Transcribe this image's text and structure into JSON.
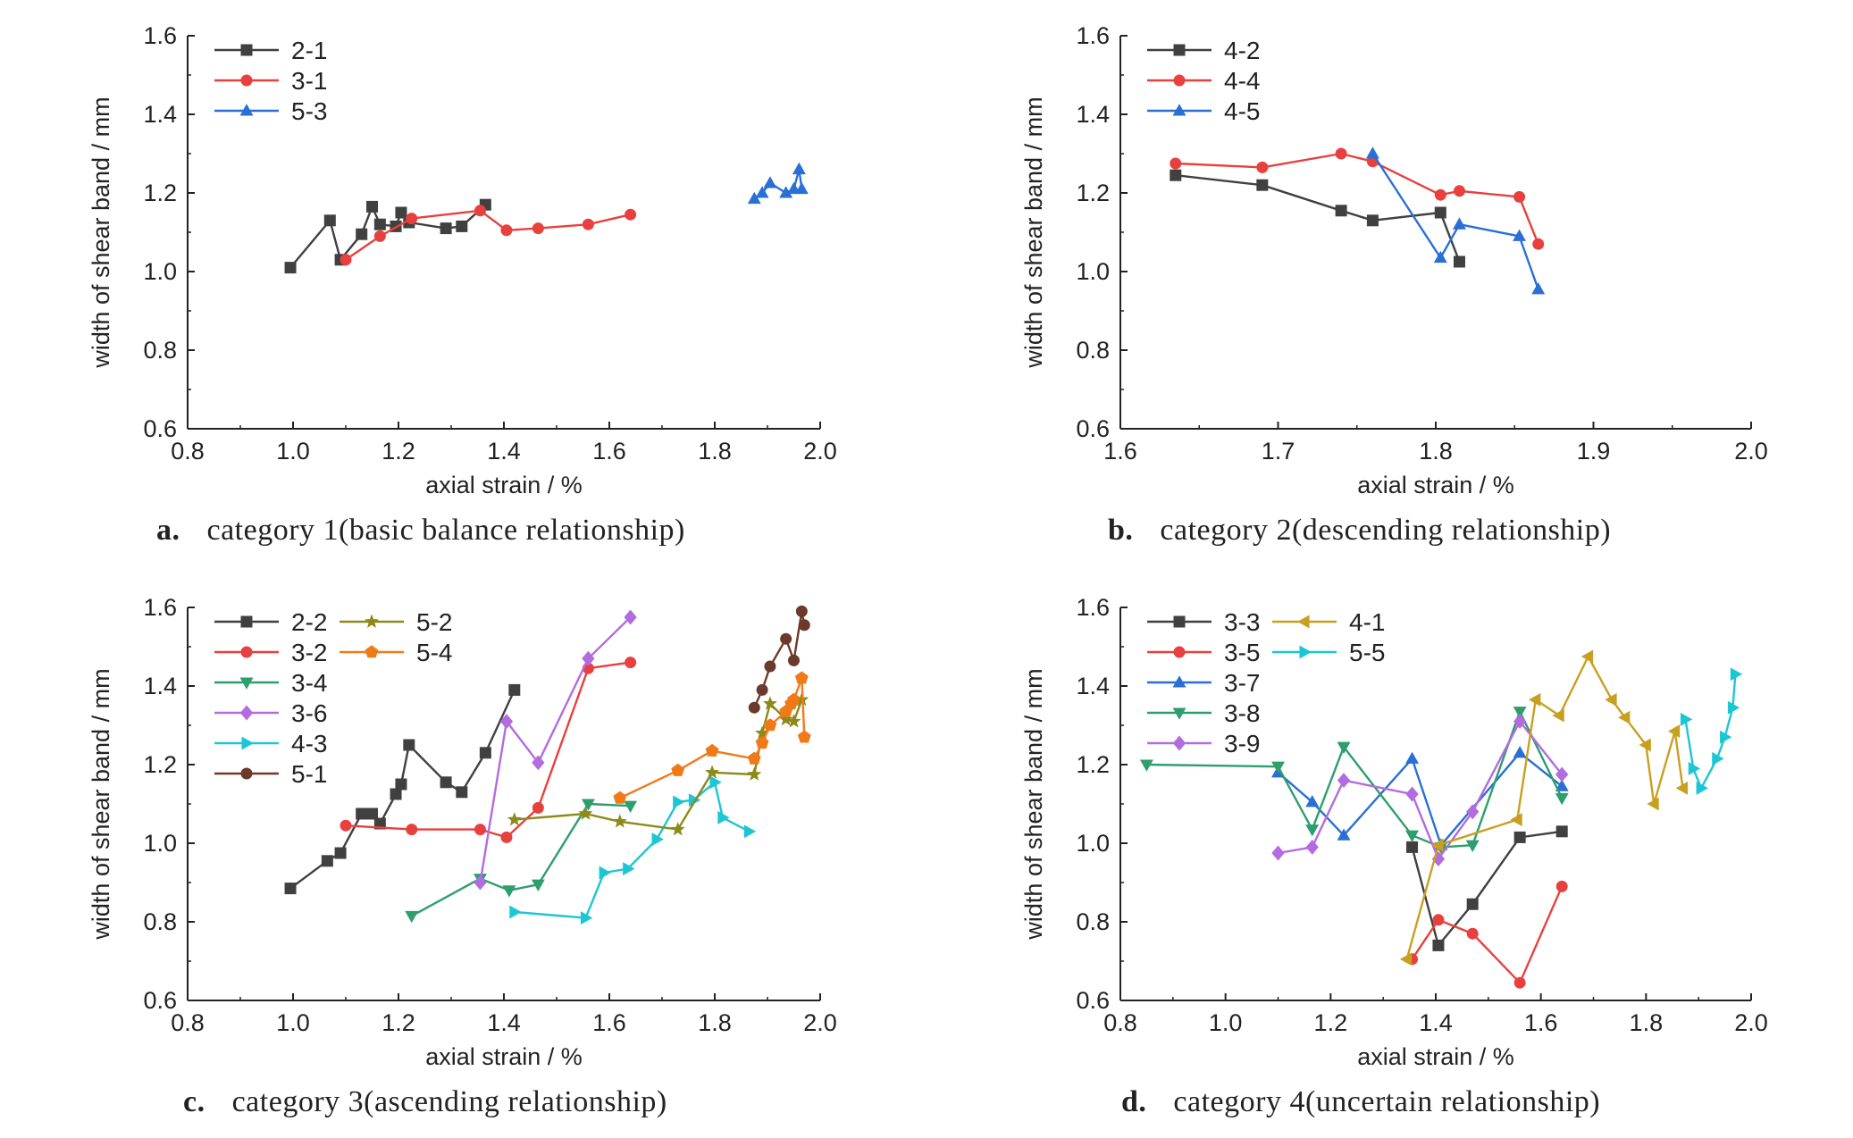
{
  "captions": [
    {
      "letter": "a.",
      "text": "category 1(basic balance relationship)"
    },
    {
      "letter": "b.",
      "text": "category 2(descending relationship)"
    },
    {
      "letter": "c.",
      "text": "category 3(ascending relationship)"
    },
    {
      "letter": "d.",
      "text": "category 4(uncertain relationship)"
    }
  ],
  "chart_data": [
    {
      "type": "line",
      "xlabel": "axial strain / %",
      "ylabel": "width of shear band / mm",
      "xlim": [
        0.8,
        2.0
      ],
      "ylim": [
        0.6,
        1.6
      ],
      "xticks": [
        0.8,
        1.0,
        1.2,
        1.4,
        1.6,
        1.8,
        2.0
      ],
      "yticks": [
        0.6,
        0.8,
        1.0,
        1.2,
        1.4,
        1.6
      ],
      "xtick_labels": [
        "0.8",
        "1.0",
        "1.2",
        "1.4",
        "1.6",
        "1.8",
        "2.0"
      ],
      "ytick_labels": [
        "0.6",
        "0.8",
        "1.0",
        "1.2",
        "1.4",
        "1.6"
      ],
      "legend_position": "top-left",
      "legend_columns": 1,
      "series": [
        {
          "name": "2-1",
          "color": "#404040",
          "marker": "square",
          "x": [
            0.995,
            1.07,
            1.09,
            1.13,
            1.15,
            1.165,
            1.195,
            1.205,
            1.22,
            1.29,
            1.32,
            1.365
          ],
          "y": [
            1.01,
            1.13,
            1.03,
            1.095,
            1.165,
            1.12,
            1.115,
            1.15,
            1.125,
            1.11,
            1.115,
            1.17
          ]
        },
        {
          "name": "3-1",
          "color": "#e8403e",
          "marker": "circle",
          "x": [
            1.1,
            1.165,
            1.225,
            1.355,
            1.405,
            1.465,
            1.56,
            1.64
          ],
          "y": [
            1.03,
            1.09,
            1.135,
            1.155,
            1.105,
            1.11,
            1.12,
            1.145
          ]
        },
        {
          "name": "5-3",
          "color": "#2a6fd6",
          "marker": "triangle-up",
          "x": [
            1.875,
            1.89,
            1.905,
            1.935,
            1.95,
            1.96,
            1.965
          ],
          "y": [
            1.185,
            1.2,
            1.225,
            1.2,
            1.21,
            1.26,
            1.21
          ]
        }
      ]
    },
    {
      "type": "line",
      "xlabel": "axial strain / %",
      "ylabel": "width of shear band / mm",
      "xlim": [
        1.6,
        2.0
      ],
      "ylim": [
        0.6,
        1.6
      ],
      "xticks": [
        1.6,
        1.7,
        1.8,
        1.9,
        2.0
      ],
      "yticks": [
        0.6,
        0.8,
        1.0,
        1.2,
        1.4,
        1.6
      ],
      "xtick_labels": [
        "1.6",
        "1.7",
        "1.8",
        "1.9",
        "2.0"
      ],
      "ytick_labels": [
        "0.6",
        "0.8",
        "1.0",
        "1.2",
        "1.4",
        "1.6"
      ],
      "legend_position": "top-left",
      "legend_columns": 1,
      "series": [
        {
          "name": "4-2",
          "color": "#404040",
          "marker": "square",
          "x": [
            1.635,
            1.69,
            1.74,
            1.76,
            1.803,
            1.815
          ],
          "y": [
            1.245,
            1.22,
            1.155,
            1.13,
            1.15,
            1.025
          ]
        },
        {
          "name": "4-4",
          "color": "#e8403e",
          "marker": "circle",
          "x": [
            1.635,
            1.69,
            1.74,
            1.76,
            1.803,
            1.815,
            1.853,
            1.865
          ],
          "y": [
            1.275,
            1.265,
            1.3,
            1.28,
            1.195,
            1.205,
            1.19,
            1.07
          ]
        },
        {
          "name": "4-5",
          "color": "#2a6fd6",
          "marker": "triangle-up",
          "x": [
            1.76,
            1.803,
            1.815,
            1.853,
            1.865
          ],
          "y": [
            1.3,
            1.035,
            1.12,
            1.09,
            0.955
          ]
        }
      ]
    },
    {
      "type": "line",
      "xlabel": "axial strain / %",
      "ylabel": "width of shear band / mm",
      "xlim": [
        0.8,
        2.0
      ],
      "ylim": [
        0.6,
        1.6
      ],
      "xticks": [
        0.8,
        1.0,
        1.2,
        1.4,
        1.6,
        1.8,
        2.0
      ],
      "yticks": [
        0.6,
        0.8,
        1.0,
        1.2,
        1.4,
        1.6
      ],
      "xtick_labels": [
        "0.8",
        "1.0",
        "1.2",
        "1.4",
        "1.6",
        "1.8",
        "2.0"
      ],
      "ytick_labels": [
        "0.6",
        "0.8",
        "1.0",
        "1.2",
        "1.4",
        "1.6"
      ],
      "legend_position": "top-left",
      "legend_columns": 2,
      "series": [
        {
          "name": "2-2",
          "color": "#404040",
          "marker": "square",
          "x": [
            0.995,
            1.065,
            1.09,
            1.13,
            1.15,
            1.165,
            1.195,
            1.205,
            1.22,
            1.29,
            1.32,
            1.365,
            1.42
          ],
          "y": [
            0.885,
            0.955,
            0.975,
            1.075,
            1.075,
            1.05,
            1.125,
            1.15,
            1.25,
            1.155,
            1.13,
            1.23,
            1.39
          ]
        },
        {
          "name": "3-2",
          "color": "#e8403e",
          "marker": "circle",
          "x": [
            1.1,
            1.225,
            1.355,
            1.405,
            1.465,
            1.56,
            1.64
          ],
          "y": [
            1.045,
            1.035,
            1.035,
            1.015,
            1.09,
            1.445,
            1.46
          ]
        },
        {
          "name": "3-4",
          "color": "#2e9e6e",
          "marker": "triangle-down",
          "x": [
            1.225,
            1.355,
            1.41,
            1.465,
            1.56,
            1.64
          ],
          "y": [
            0.815,
            0.91,
            0.88,
            0.895,
            1.1,
            1.095
          ]
        },
        {
          "name": "3-6",
          "color": "#b36be0",
          "marker": "diamond",
          "x": [
            1.355,
            1.405,
            1.465,
            1.56,
            1.64
          ],
          "y": [
            0.9,
            1.31,
            1.205,
            1.47,
            1.575
          ]
        },
        {
          "name": "4-3",
          "color": "#1cc6d4",
          "marker": "triangle-right",
          "x": [
            1.42,
            1.555,
            1.59,
            1.635,
            1.69,
            1.73,
            1.76,
            1.8,
            1.815,
            1.865
          ],
          "y": [
            0.825,
            0.81,
            0.925,
            0.935,
            1.01,
            1.105,
            1.11,
            1.155,
            1.065,
            1.03
          ]
        },
        {
          "name": "5-1",
          "color": "#6b3a2c",
          "marker": "circle",
          "x": [
            1.875,
            1.89,
            1.905,
            1.935,
            1.95,
            1.965,
            1.97
          ],
          "y": [
            1.345,
            1.39,
            1.45,
            1.52,
            1.465,
            1.59,
            1.555
          ]
        },
        {
          "name": "5-2",
          "color": "#8c8a1a",
          "marker": "star",
          "x": [
            1.42,
            1.555,
            1.62,
            1.73,
            1.795,
            1.875,
            1.89,
            1.905,
            1.935,
            1.95,
            1.965
          ],
          "y": [
            1.06,
            1.075,
            1.055,
            1.035,
            1.18,
            1.175,
            1.28,
            1.355,
            1.315,
            1.31,
            1.365
          ]
        },
        {
          "name": "5-4",
          "color": "#f07a18",
          "marker": "pentagon",
          "x": [
            1.62,
            1.73,
            1.795,
            1.875,
            1.89,
            1.905,
            1.935,
            1.945,
            1.95,
            1.965,
            1.97
          ],
          "y": [
            1.115,
            1.185,
            1.235,
            1.215,
            1.255,
            1.3,
            1.335,
            1.355,
            1.365,
            1.42,
            1.27
          ]
        }
      ]
    },
    {
      "type": "line",
      "xlabel": "axial strain / %",
      "ylabel": "width of shear band / mm",
      "xlim": [
        0.8,
        2.0
      ],
      "ylim": [
        0.6,
        1.6
      ],
      "xticks": [
        0.8,
        1.0,
        1.2,
        1.4,
        1.6,
        1.8,
        2.0
      ],
      "yticks": [
        0.6,
        0.8,
        1.0,
        1.2,
        1.4,
        1.6
      ],
      "xtick_labels": [
        "0.8",
        "1.0",
        "1.2",
        "1.4",
        "1.6",
        "1.8",
        "2.0"
      ],
      "ytick_labels": [
        "0.6",
        "0.8",
        "1.0",
        "1.2",
        "1.4",
        "1.6"
      ],
      "legend_position": "top-left",
      "legend_columns": 2,
      "series": [
        {
          "name": "3-3",
          "color": "#404040",
          "marker": "square",
          "x": [
            1.355,
            1.405,
            1.47,
            1.56,
            1.64
          ],
          "y": [
            0.99,
            0.74,
            0.845,
            1.015,
            1.03
          ]
        },
        {
          "name": "3-5",
          "color": "#e8403e",
          "marker": "circle",
          "x": [
            1.355,
            1.405,
            1.47,
            1.56,
            1.64
          ],
          "y": [
            0.705,
            0.805,
            0.77,
            0.645,
            0.89
          ]
        },
        {
          "name": "3-7",
          "color": "#2a6fd6",
          "marker": "triangle-up",
          "x": [
            1.1,
            1.165,
            1.225,
            1.355,
            1.41,
            1.56,
            1.64
          ],
          "y": [
            1.18,
            1.105,
            1.02,
            1.215,
            0.995,
            1.23,
            1.145
          ]
        },
        {
          "name": "3-8",
          "color": "#2e9e6e",
          "marker": "triangle-down",
          "x": [
            0.85,
            1.1,
            1.165,
            1.225,
            1.355,
            1.41,
            1.47,
            1.56,
            1.64
          ],
          "y": [
            1.2,
            1.195,
            1.035,
            1.245,
            1.02,
            0.99,
            0.995,
            1.335,
            1.115
          ]
        },
        {
          "name": "3-9",
          "color": "#b36be0",
          "marker": "diamond",
          "x": [
            1.1,
            1.165,
            1.225,
            1.355,
            1.405,
            1.47,
            1.56,
            1.64
          ],
          "y": [
            0.975,
            0.99,
            1.16,
            1.125,
            0.96,
            1.08,
            1.31,
            1.175
          ]
        },
        {
          "name": "4-1",
          "color": "#c8a020",
          "marker": "triangle-left",
          "x": [
            1.345,
            1.405,
            1.555,
            1.59,
            1.635,
            1.69,
            1.735,
            1.76,
            1.8,
            1.815,
            1.855,
            1.87
          ],
          "y": [
            0.705,
            0.995,
            1.06,
            1.365,
            1.325,
            1.475,
            1.365,
            1.32,
            1.25,
            1.1,
            1.285,
            1.14
          ]
        },
        {
          "name": "5-5",
          "color": "#1cc6d4",
          "marker": "triangle-right",
          "x": [
            1.875,
            1.89,
            1.905,
            1.935,
            1.95,
            1.965,
            1.97
          ],
          "y": [
            1.315,
            1.19,
            1.14,
            1.215,
            1.27,
            1.345,
            1.43
          ]
        }
      ]
    }
  ]
}
